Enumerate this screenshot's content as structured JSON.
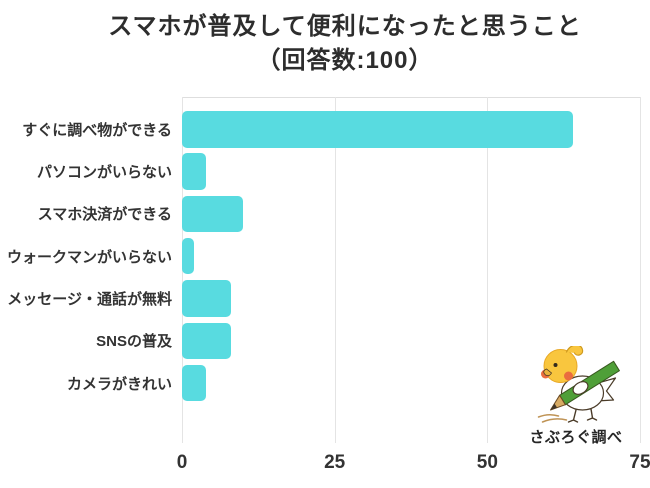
{
  "title": {
    "line1": "スマホが普及して便利になったと思うこと",
    "line2": "（回答数:100）"
  },
  "chart_data": {
    "type": "bar",
    "orientation": "horizontal",
    "title": "スマホが普及して便利になったと思うこと（回答数:100）",
    "categories": [
      "すぐに調べ物ができる",
      "パソコンがいらない",
      "スマホ決済ができる",
      "ウォークマンがいらない",
      "メッセージ・通話が無料",
      "SNSの普及",
      "カメラがきれい"
    ],
    "values": [
      64,
      4,
      10,
      2,
      8,
      8,
      4
    ],
    "xlim": [
      0,
      75
    ],
    "x_ticks": [
      0,
      25,
      50,
      75
    ],
    "grid": true,
    "legend": false,
    "bar_color": "#58dbe0",
    "grid_color": "#e4e4e4",
    "text_color": "#333333"
  },
  "footer": {
    "credit": "さぶろぐ調べ",
    "mascot": "bird-with-pencil-mascot"
  }
}
